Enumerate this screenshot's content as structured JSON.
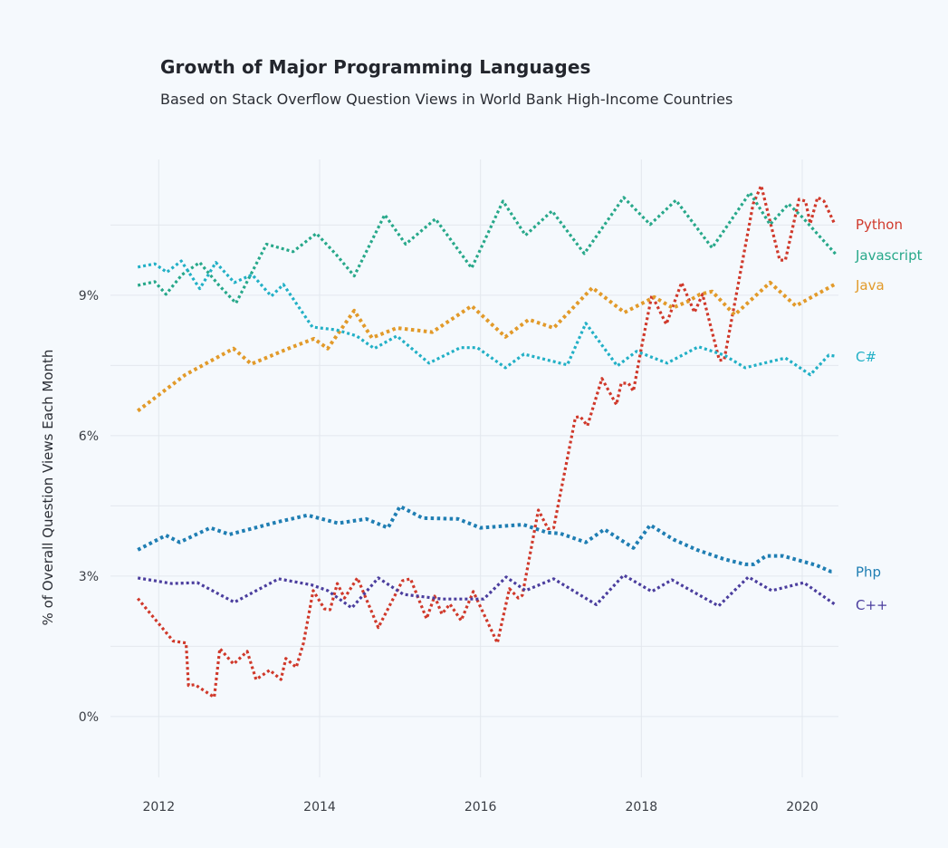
{
  "chart_data": {
    "type": "line",
    "title": "Growth of Major Programming Languages",
    "subtitle": "Based on Stack Overflow Question Views in World Bank High-Income Countries",
    "xlabel": "",
    "ylabel": "% of Overall Question Views Each Month",
    "xlim": [
      2011.4,
      2020.45
    ],
    "ylim": [
      -1.3,
      11.9
    ],
    "x_ticks": [
      2012,
      2014,
      2016,
      2018,
      2020
    ],
    "x_tick_labels": [
      "2012",
      "2014",
      "2016",
      "2018",
      "2020"
    ],
    "y_ticks": [
      0,
      3,
      6,
      9
    ],
    "y_tick_labels": [
      "0%",
      "3%",
      "6%",
      "9%"
    ],
    "y_minor_grid": [
      1.5,
      4.5,
      7.5,
      10.5
    ],
    "grid": true,
    "legend": "end-of-line labels (right)",
    "line_style": "dotted",
    "series": [
      {
        "name": "Python",
        "label": "Python",
        "color": "#d0392b",
        "points": [
          [
            2011.74,
            2.52
          ],
          [
            2012.18,
            1.61
          ],
          [
            2012.34,
            1.57
          ],
          [
            2012.37,
            0.66
          ],
          [
            2012.45,
            0.68
          ],
          [
            2012.69,
            0.41
          ],
          [
            2012.76,
            1.45
          ],
          [
            2012.93,
            1.12
          ],
          [
            2013.1,
            1.39
          ],
          [
            2013.21,
            0.79
          ],
          [
            2013.38,
            0.99
          ],
          [
            2013.52,
            0.79
          ],
          [
            2013.58,
            1.24
          ],
          [
            2013.71,
            1.05
          ],
          [
            2013.8,
            1.57
          ],
          [
            2013.92,
            2.69
          ],
          [
            2014.06,
            2.3
          ],
          [
            2014.13,
            2.28
          ],
          [
            2014.22,
            2.84
          ],
          [
            2014.31,
            2.53
          ],
          [
            2014.47,
            2.96
          ],
          [
            2014.73,
            1.9
          ],
          [
            2015.03,
            2.9
          ],
          [
            2015.13,
            2.94
          ],
          [
            2015.33,
            2.09
          ],
          [
            2015.43,
            2.57
          ],
          [
            2015.52,
            2.19
          ],
          [
            2015.62,
            2.4
          ],
          [
            2015.76,
            2.05
          ],
          [
            2015.91,
            2.67
          ],
          [
            2016.21,
            1.57
          ],
          [
            2016.36,
            2.73
          ],
          [
            2016.47,
            2.53
          ],
          [
            2016.52,
            2.59
          ],
          [
            2016.72,
            4.41
          ],
          [
            2016.84,
            4.01
          ],
          [
            2016.91,
            4.03
          ],
          [
            2017.18,
            6.39
          ],
          [
            2017.24,
            6.41
          ],
          [
            2017.33,
            6.21
          ],
          [
            2017.51,
            7.22
          ],
          [
            2017.69,
            6.66
          ],
          [
            2017.75,
            7.12
          ],
          [
            2017.84,
            7.12
          ],
          [
            2017.9,
            6.95
          ],
          [
            2018.01,
            7.96
          ],
          [
            2018.13,
            9.0
          ],
          [
            2018.31,
            8.38
          ],
          [
            2018.5,
            9.27
          ],
          [
            2018.66,
            8.63
          ],
          [
            2018.76,
            9.02
          ],
          [
            2018.97,
            7.61
          ],
          [
            2019.03,
            7.62
          ],
          [
            2019.39,
            10.95
          ],
          [
            2019.49,
            11.34
          ],
          [
            2019.72,
            9.75
          ],
          [
            2019.79,
            9.75
          ],
          [
            2019.96,
            11.05
          ],
          [
            2020.04,
            11.01
          ],
          [
            2020.1,
            10.53
          ],
          [
            2020.19,
            11.09
          ],
          [
            2020.27,
            11.01
          ],
          [
            2020.4,
            10.53
          ]
        ]
      },
      {
        "name": "Javascript",
        "label": "Javascript",
        "color": "#27a88a",
        "points": [
          [
            2011.74,
            9.21
          ],
          [
            2011.95,
            9.29
          ],
          [
            2012.09,
            9.02
          ],
          [
            2012.29,
            9.44
          ],
          [
            2012.51,
            9.7
          ],
          [
            2012.75,
            9.21
          ],
          [
            2012.96,
            8.83
          ],
          [
            2013.34,
            10.09
          ],
          [
            2013.67,
            9.93
          ],
          [
            2013.96,
            10.32
          ],
          [
            2014.2,
            9.88
          ],
          [
            2014.43,
            9.41
          ],
          [
            2014.81,
            10.72
          ],
          [
            2015.07,
            10.09
          ],
          [
            2015.44,
            10.63
          ],
          [
            2015.89,
            9.58
          ],
          [
            2016.28,
            11.01
          ],
          [
            2016.56,
            10.28
          ],
          [
            2016.89,
            10.8
          ],
          [
            2017.29,
            9.89
          ],
          [
            2017.78,
            11.09
          ],
          [
            2018.11,
            10.51
          ],
          [
            2018.43,
            11.03
          ],
          [
            2018.88,
            10.01
          ],
          [
            2019.35,
            11.19
          ],
          [
            2019.6,
            10.51
          ],
          [
            2019.83,
            10.95
          ],
          [
            2020.0,
            10.67
          ],
          [
            2020.42,
            9.87
          ]
        ]
      },
      {
        "name": "Java",
        "label": "Java",
        "color": "#e29a2a",
        "points": [
          [
            2011.74,
            6.53
          ],
          [
            2012.33,
            7.3
          ],
          [
            2012.93,
            7.86
          ],
          [
            2013.15,
            7.53
          ],
          [
            2013.64,
            7.88
          ],
          [
            2013.93,
            8.07
          ],
          [
            2014.1,
            7.86
          ],
          [
            2014.43,
            8.67
          ],
          [
            2014.65,
            8.09
          ],
          [
            2014.96,
            8.3
          ],
          [
            2015.4,
            8.21
          ],
          [
            2015.89,
            8.77
          ],
          [
            2016.31,
            8.11
          ],
          [
            2016.6,
            8.48
          ],
          [
            2016.91,
            8.3
          ],
          [
            2017.39,
            9.16
          ],
          [
            2017.79,
            8.63
          ],
          [
            2018.16,
            8.96
          ],
          [
            2018.39,
            8.73
          ],
          [
            2018.58,
            8.87
          ],
          [
            2018.73,
            9.02
          ],
          [
            2018.88,
            9.08
          ],
          [
            2019.16,
            8.58
          ],
          [
            2019.6,
            9.27
          ],
          [
            2019.92,
            8.77
          ],
          [
            2020.4,
            9.23
          ]
        ]
      },
      {
        "name": "C#",
        "label": "C#",
        "color": "#22b0c6",
        "points": [
          [
            2011.74,
            9.6
          ],
          [
            2011.95,
            9.67
          ],
          [
            2012.1,
            9.49
          ],
          [
            2012.28,
            9.73
          ],
          [
            2012.51,
            9.14
          ],
          [
            2012.71,
            9.7
          ],
          [
            2012.94,
            9.27
          ],
          [
            2013.16,
            9.44
          ],
          [
            2013.4,
            8.98
          ],
          [
            2013.55,
            9.23
          ],
          [
            2013.91,
            8.32
          ],
          [
            2014.21,
            8.26
          ],
          [
            2014.46,
            8.13
          ],
          [
            2014.68,
            7.86
          ],
          [
            2014.96,
            8.13
          ],
          [
            2015.36,
            7.55
          ],
          [
            2015.75,
            7.88
          ],
          [
            2015.96,
            7.88
          ],
          [
            2016.31,
            7.45
          ],
          [
            2016.54,
            7.74
          ],
          [
            2017.08,
            7.51
          ],
          [
            2017.31,
            8.4
          ],
          [
            2017.7,
            7.49
          ],
          [
            2017.94,
            7.8
          ],
          [
            2018.32,
            7.55
          ],
          [
            2018.71,
            7.9
          ],
          [
            2019.03,
            7.72
          ],
          [
            2019.29,
            7.45
          ],
          [
            2019.79,
            7.66
          ],
          [
            2020.1,
            7.3
          ],
          [
            2020.33,
            7.72
          ],
          [
            2020.4,
            7.7
          ]
        ]
      },
      {
        "name": "Php",
        "label": "Php",
        "color": "#1f7eb3",
        "points": [
          [
            2011.74,
            3.56
          ],
          [
            2012.09,
            3.87
          ],
          [
            2012.26,
            3.72
          ],
          [
            2012.64,
            4.03
          ],
          [
            2012.88,
            3.89
          ],
          [
            2013.49,
            4.16
          ],
          [
            2013.85,
            4.3
          ],
          [
            2014.23,
            4.13
          ],
          [
            2014.58,
            4.22
          ],
          [
            2014.85,
            4.03
          ],
          [
            2015.0,
            4.49
          ],
          [
            2015.28,
            4.24
          ],
          [
            2015.72,
            4.22
          ],
          [
            2016.0,
            4.03
          ],
          [
            2016.53,
            4.1
          ],
          [
            2016.83,
            3.93
          ],
          [
            2016.99,
            3.91
          ],
          [
            2017.31,
            3.72
          ],
          [
            2017.54,
            4.0
          ],
          [
            2017.9,
            3.6
          ],
          [
            2018.11,
            4.09
          ],
          [
            2018.4,
            3.78
          ],
          [
            2018.69,
            3.56
          ],
          [
            2019.03,
            3.36
          ],
          [
            2019.29,
            3.25
          ],
          [
            2019.4,
            3.25
          ],
          [
            2019.55,
            3.43
          ],
          [
            2019.76,
            3.43
          ],
          [
            2020.18,
            3.23
          ],
          [
            2020.35,
            3.1
          ],
          [
            2020.4,
            3.1
          ]
        ]
      },
      {
        "name": "C++",
        "label": "C++",
        "color": "#4b3e9e",
        "points": [
          [
            2011.74,
            2.96
          ],
          [
            2012.16,
            2.84
          ],
          [
            2012.48,
            2.86
          ],
          [
            2012.94,
            2.44
          ],
          [
            2013.49,
            2.94
          ],
          [
            2013.9,
            2.81
          ],
          [
            2014.1,
            2.69
          ],
          [
            2014.4,
            2.32
          ],
          [
            2014.73,
            2.96
          ],
          [
            2015.04,
            2.61
          ],
          [
            2015.52,
            2.51
          ],
          [
            2016.04,
            2.51
          ],
          [
            2016.32,
            2.98
          ],
          [
            2016.56,
            2.69
          ],
          [
            2016.91,
            2.94
          ],
          [
            2017.44,
            2.39
          ],
          [
            2017.78,
            3.02
          ],
          [
            2018.13,
            2.67
          ],
          [
            2018.38,
            2.92
          ],
          [
            2018.96,
            2.36
          ],
          [
            2019.33,
            2.98
          ],
          [
            2019.62,
            2.69
          ],
          [
            2020.02,
            2.86
          ],
          [
            2020.4,
            2.4
          ]
        ]
      }
    ]
  }
}
